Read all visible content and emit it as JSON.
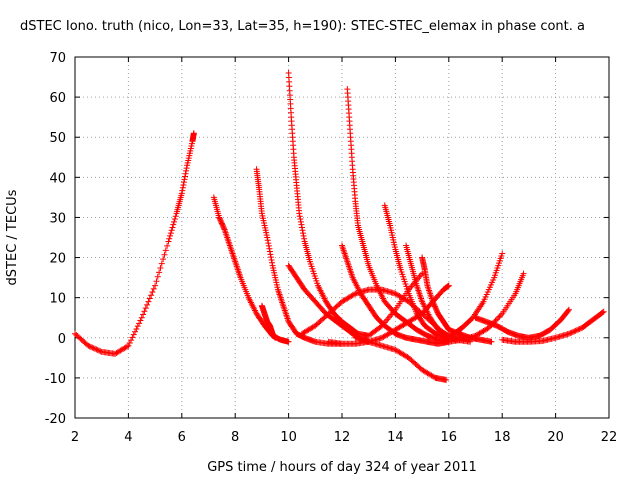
{
  "chart_data": {
    "type": "scatter",
    "title": "dSTEC Iono. truth (nico, Lon=33, Lat=35, h=190): STEC-STEC_elemax in phase cont. a",
    "xlabel": "GPS time / hours of day 324 of year 2011",
    "ylabel": "dSTEC  / TECUs",
    "xlim": [
      2,
      22
    ],
    "ylim": [
      -20,
      70
    ],
    "xticks": [
      2,
      4,
      6,
      8,
      10,
      12,
      14,
      16,
      18,
      20,
      22
    ],
    "yticks": [
      -20,
      -10,
      0,
      10,
      20,
      30,
      40,
      50,
      60,
      70
    ],
    "grid": true,
    "marker": "+",
    "color": "#ff0000",
    "series": [
      {
        "x": [
          2.0,
          2.5,
          3.0,
          3.5,
          4.0,
          4.5,
          5.0,
          5.5,
          5.8,
          6.0,
          6.2,
          6.4,
          6.45
        ],
        "y": [
          1,
          -2,
          -3.5,
          -4,
          -2,
          5,
          13,
          24,
          31,
          36,
          43,
          49,
          51
        ]
      },
      {
        "x": [
          7.2,
          7.4,
          7.6,
          7.8,
          8.0,
          8.2,
          8.5,
          8.8,
          9.1,
          9.4,
          9.7,
          10.0
        ],
        "y": [
          35,
          30,
          27,
          23,
          19,
          15,
          10,
          6,
          3,
          0.5,
          -0.5,
          -1
        ]
      },
      {
        "x": [
          8.8,
          8.9,
          9.0,
          9.2,
          9.4,
          9.6,
          9.8,
          10.0,
          10.3,
          10.6,
          11.0,
          11.5,
          12.0
        ],
        "y": [
          42,
          37,
          31,
          25,
          18,
          12,
          8,
          4,
          1,
          0,
          -1,
          -1.5,
          -1.5
        ]
      },
      {
        "x": [
          9.0,
          9.1,
          9.2,
          9.3,
          9.4,
          9.5
        ],
        "y": [
          8,
          6,
          4,
          3,
          1,
          0
        ]
      },
      {
        "x": [
          10.0,
          10.1,
          10.2,
          10.3,
          10.4,
          10.6,
          10.8,
          11.1,
          11.4,
          11.7,
          12.0,
          12.3,
          12.6,
          13.0,
          13.5,
          14.0,
          14.5,
          15.0
        ],
        "y": [
          66,
          55,
          45,
          38,
          31,
          24,
          19,
          13,
          9,
          6,
          4,
          2.5,
          1,
          0.5,
          3,
          7,
          12,
          16
        ]
      },
      {
        "x": [
          10.0,
          10.3,
          10.6,
          11.0,
          11.4,
          11.8,
          12.2,
          12.6,
          13.0
        ],
        "y": [
          18,
          15,
          12,
          9,
          6,
          4,
          2,
          0,
          -1
        ]
      },
      {
        "x": [
          10.5,
          11.0,
          11.5,
          12.0,
          12.5,
          13.0,
          13.5,
          14.0,
          14.5,
          15.0,
          15.5,
          16.0
        ],
        "y": [
          1,
          3,
          6,
          9,
          11,
          12,
          12,
          11,
          9,
          6,
          3,
          0
        ]
      },
      {
        "x": [
          12.0,
          12.2,
          12.4,
          12.7,
          13.0,
          13.3,
          13.6,
          14.0,
          14.4,
          14.8,
          15.2,
          15.6,
          16.0
        ],
        "y": [
          23,
          19,
          15,
          11,
          8,
          5,
          3,
          1,
          0,
          -0.5,
          -1,
          -1.5,
          -1
        ]
      },
      {
        "x": [
          12.2,
          12.3,
          12.4,
          12.5,
          12.6,
          12.8,
          13.0,
          13.3,
          13.6,
          14.0,
          14.4,
          14.8,
          15.2,
          15.6,
          16.0
        ],
        "y": [
          62,
          52,
          42,
          34,
          28,
          23,
          18,
          13,
          9,
          6,
          4,
          2,
          0.5,
          -0.5,
          -1
        ]
      },
      {
        "x": [
          11.5,
          12.0,
          12.5,
          13.0,
          13.5,
          14.0,
          14.5,
          15.0,
          15.4,
          15.8,
          16.0
        ],
        "y": [
          -1,
          -1.5,
          -1.5,
          -1,
          0,
          2,
          4,
          6,
          9,
          12,
          13
        ]
      },
      {
        "x": [
          13.6,
          13.8,
          14.0,
          14.2,
          14.5,
          14.8,
          15.1,
          15.5,
          15.9,
          16.3,
          16.8
        ],
        "y": [
          33,
          28,
          22,
          17,
          11,
          6,
          3,
          1,
          0,
          -0.5,
          -1
        ]
      },
      {
        "x": [
          12.5,
          13.0,
          13.5,
          14.0,
          14.5,
          15.0,
          15.5,
          15.9
        ],
        "y": [
          0,
          -1,
          -2,
          -3,
          -5,
          -8,
          -10,
          -10.5
        ]
      },
      {
        "x": [
          14.4,
          14.6,
          14.8,
          15.0,
          15.3,
          15.6,
          16.0,
          16.4,
          16.8
        ],
        "y": [
          23,
          18,
          13,
          9,
          5,
          2,
          0.5,
          0,
          -0.5
        ]
      },
      {
        "x": [
          15.0,
          15.1,
          15.2,
          15.4,
          15.6,
          15.8,
          16.0,
          16.4,
          16.8,
          17.2,
          17.6
        ],
        "y": [
          20,
          17,
          13,
          9,
          6,
          4,
          2,
          1,
          0,
          -0.5,
          -1
        ]
      },
      {
        "x": [
          16.0,
          16.2,
          16.5,
          16.9,
          17.3,
          17.7,
          18.0
        ],
        "y": [
          0,
          1,
          2.5,
          5,
          9,
          15,
          21
        ]
      },
      {
        "x": [
          16.0,
          16.5,
          17.0,
          17.5,
          18.0,
          18.5,
          18.8
        ],
        "y": [
          -1,
          -0.5,
          0.5,
          2.5,
          6,
          11,
          16
        ]
      },
      {
        "x": [
          17.0,
          17.4,
          17.8,
          18.2,
          18.6,
          19.0,
          19.4,
          19.8,
          20.2,
          20.5
        ],
        "y": [
          5,
          4,
          3,
          1.5,
          0.5,
          0,
          0.5,
          2,
          4.5,
          7
        ]
      },
      {
        "x": [
          18.0,
          18.5,
          19.0,
          19.5,
          20.0,
          20.5,
          21.0,
          21.4,
          21.8
        ],
        "y": [
          -0.5,
          -1,
          -1,
          -0.8,
          0,
          1,
          2.5,
          4.5,
          6.5
        ]
      }
    ]
  }
}
